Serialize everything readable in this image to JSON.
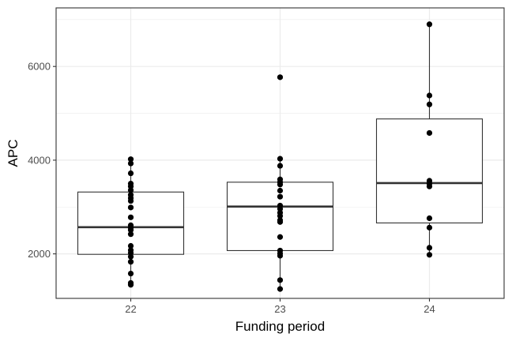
{
  "chart_data": {
    "type": "boxplot",
    "title": "",
    "xlabel": "Funding period",
    "ylabel": "APC",
    "ylim": [
      1050,
      7250
    ],
    "yticks": [
      2000,
      4000,
      6000
    ],
    "ytick_labels": [
      "2000",
      "4000",
      "6000"
    ],
    "grid": true,
    "categories": [
      "22",
      "23",
      "24"
    ],
    "boxes": [
      {
        "category": "22",
        "whisker_low": 1340,
        "q1": 1990,
        "median": 2570,
        "q3": 3320,
        "whisker_high": 4020
      },
      {
        "category": "23",
        "whisker_low": 1250,
        "q1": 2070,
        "median": 3010,
        "q3": 3530,
        "whisker_high": 4030
      },
      {
        "category": "24",
        "whisker_low": 1980,
        "q1": 2660,
        "median": 3510,
        "q3": 4880,
        "whisker_high": 6900
      }
    ],
    "points": [
      {
        "category": "22",
        "values": [
          4020,
          3930,
          3720,
          3500,
          3440,
          3360,
          3260,
          3190,
          3130,
          2990,
          2780,
          2610,
          2560,
          2510,
          2420,
          2170,
          2080,
          2020,
          1940,
          1830,
          1580,
          1380,
          1340
        ]
      },
      {
        "category": "23",
        "values": [
          5770,
          4030,
          3880,
          3590,
          3530,
          3480,
          3350,
          3220,
          3030,
          2960,
          2880,
          2810,
          2720,
          2680,
          2360,
          2070,
          2010,
          1960,
          1440,
          1250
        ]
      },
      {
        "category": "24",
        "values": [
          6900,
          5380,
          5190,
          4580,
          3560,
          3500,
          3440,
          2760,
          2560,
          2130,
          1980
        ]
      }
    ],
    "colors": {
      "panel_border": "#333333",
      "grid": "#ebebeb",
      "box_line": "#333333",
      "point": "#000000",
      "tick_label": "#4d4d4d",
      "axis_title": "#000000"
    }
  }
}
